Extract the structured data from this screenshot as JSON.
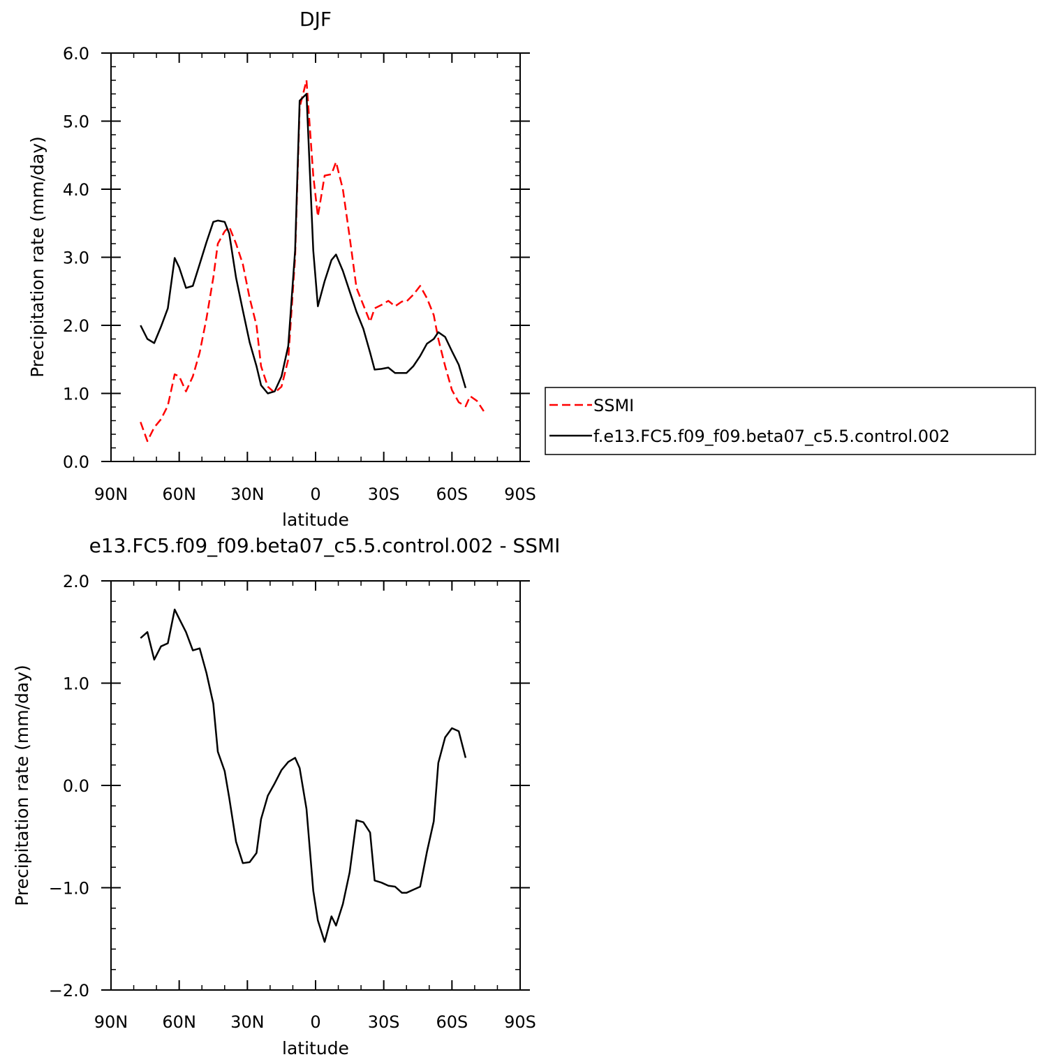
{
  "chart_data": [
    {
      "type": "line",
      "title": "DJF",
      "xlabel": "latitude",
      "ylabel": "Precipitation rate (mm/day)",
      "xlim": [
        -90,
        90
      ],
      "ylim": [
        0,
        6
      ],
      "x_ticks": [
        {
          "value": -90,
          "label": "90N"
        },
        {
          "value": -60,
          "label": "60N"
        },
        {
          "value": -30,
          "label": "30N"
        },
        {
          "value": 0,
          "label": "0"
        },
        {
          "value": 30,
          "label": "30S"
        },
        {
          "value": 60,
          "label": "60S"
        },
        {
          "value": 90,
          "label": "90S"
        }
      ],
      "y_ticks": [
        {
          "value": 0,
          "label": "0.0"
        },
        {
          "value": 1,
          "label": "1.0"
        },
        {
          "value": 2,
          "label": "2.0"
        },
        {
          "value": 3,
          "label": "3.0"
        },
        {
          "value": 4,
          "label": "4.0"
        },
        {
          "value": 5,
          "label": "5.0"
        },
        {
          "value": 6,
          "label": "6.0"
        }
      ],
      "legend": {
        "position": "right"
      },
      "series": [
        {
          "name": "SSMI",
          "color": "#ff0000",
          "dash": "dashed",
          "x": [
            -77,
            -74,
            -71,
            -68,
            -65,
            -62,
            -60,
            -57,
            -54,
            -51,
            -48,
            -45,
            -43,
            -40,
            -38,
            -35,
            -32,
            -29,
            -26,
            -24,
            -21,
            -18,
            -15,
            -12,
            -9,
            -7,
            -4,
            -1,
            1,
            4,
            7,
            9,
            12,
            15,
            18,
            21,
            24,
            26,
            29,
            32,
            35,
            38,
            40,
            43,
            46,
            49,
            52,
            54,
            57,
            60,
            63,
            66,
            68,
            71,
            74
          ],
          "y": [
            0.58,
            0.3,
            0.5,
            0.62,
            0.82,
            1.28,
            1.25,
            1.03,
            1.25,
            1.6,
            2.1,
            2.7,
            3.2,
            3.38,
            3.45,
            3.2,
            2.9,
            2.4,
            2.0,
            1.4,
            1.1,
            1.01,
            1.1,
            1.5,
            3.0,
            5.2,
            5.6,
            4.2,
            3.6,
            4.2,
            4.22,
            4.4,
            4.0,
            3.3,
            2.55,
            2.3,
            2.05,
            2.25,
            2.3,
            2.36,
            2.28,
            2.35,
            2.35,
            2.45,
            2.58,
            2.4,
            2.15,
            1.8,
            1.4,
            1.05,
            0.87,
            0.81,
            0.96,
            0.89,
            0.74
          ]
        },
        {
          "name": "f.e13.FC5.f09_f09.beta07_c5.5.control.002",
          "color": "#000000",
          "dash": "solid",
          "x": [
            -77,
            -74,
            -71,
            -68,
            -65,
            -62,
            -60,
            -57,
            -54,
            -51,
            -48,
            -45,
            -43,
            -40,
            -38,
            -35,
            -32,
            -29,
            -26,
            -24,
            -21,
            -18,
            -15,
            -12,
            -9,
            -7,
            -4,
            -1,
            1,
            4,
            7,
            9,
            12,
            15,
            18,
            21,
            24,
            26,
            29,
            32,
            35,
            38,
            40,
            43,
            46,
            49,
            52,
            54,
            57,
            60,
            63,
            66
          ],
          "y": [
            2.0,
            1.8,
            1.74,
            1.98,
            2.25,
            2.99,
            2.85,
            2.55,
            2.58,
            2.9,
            3.22,
            3.52,
            3.54,
            3.52,
            3.35,
            2.7,
            2.22,
            1.75,
            1.4,
            1.12,
            1.0,
            1.03,
            1.25,
            1.7,
            3.1,
            5.3,
            5.4,
            3.1,
            2.28,
            2.65,
            2.96,
            3.04,
            2.8,
            2.5,
            2.2,
            1.95,
            1.6,
            1.35,
            1.36,
            1.38,
            1.3,
            1.3,
            1.3,
            1.4,
            1.55,
            1.73,
            1.8,
            1.9,
            1.83,
            1.62,
            1.42,
            1.08
          ]
        }
      ]
    },
    {
      "type": "line",
      "title": "e13.FC5.f09_f09.beta07_c5.5.control.002 - SSMI",
      "xlabel": "latitude",
      "ylabel": "Precipitation rate (mm/day)",
      "xlim": [
        -90,
        90
      ],
      "ylim": [
        -2,
        2
      ],
      "x_ticks": [
        {
          "value": -90,
          "label": "90N"
        },
        {
          "value": -60,
          "label": "60N"
        },
        {
          "value": -30,
          "label": "30N"
        },
        {
          "value": 0,
          "label": "0"
        },
        {
          "value": 30,
          "label": "30S"
        },
        {
          "value": 60,
          "label": "60S"
        },
        {
          "value": 90,
          "label": "90S"
        }
      ],
      "y_ticks": [
        {
          "value": -2,
          "label": "−2.0"
        },
        {
          "value": -1,
          "label": "−1.0"
        },
        {
          "value": 0,
          "label": "0.0"
        },
        {
          "value": 1,
          "label": "1.0"
        },
        {
          "value": 2,
          "label": "2.0"
        }
      ],
      "series": [
        {
          "color": "#000000",
          "dash": "solid",
          "x": [
            -77,
            -74,
            -71,
            -68,
            -65,
            -62,
            -60,
            -57,
            -54,
            -51,
            -48,
            -45,
            -43,
            -40,
            -38,
            -35,
            -32,
            -29,
            -26,
            -24,
            -21,
            -18,
            -15,
            -12,
            -9,
            -7,
            -4,
            -1,
            1,
            4,
            7,
            9,
            12,
            15,
            18,
            21,
            24,
            26,
            29,
            32,
            35,
            38,
            40,
            43,
            46,
            49,
            52,
            54,
            57,
            60,
            63,
            66
          ],
          "y": [
            1.44,
            1.5,
            1.23,
            1.36,
            1.39,
            1.72,
            1.63,
            1.5,
            1.32,
            1.34,
            1.1,
            0.8,
            0.33,
            0.14,
            -0.12,
            -0.55,
            -0.76,
            -0.75,
            -0.66,
            -0.33,
            -0.1,
            0.02,
            0.15,
            0.23,
            0.27,
            0.17,
            -0.23,
            -1.03,
            -1.32,
            -1.53,
            -1.28,
            -1.37,
            -1.16,
            -0.85,
            -0.34,
            -0.36,
            -0.46,
            -0.93,
            -0.95,
            -0.98,
            -0.99,
            -1.05,
            -1.05,
            -1.02,
            -0.99,
            -0.65,
            -0.35,
            0.22,
            0.47,
            0.56,
            0.53,
            0.27
          ]
        }
      ]
    }
  ]
}
